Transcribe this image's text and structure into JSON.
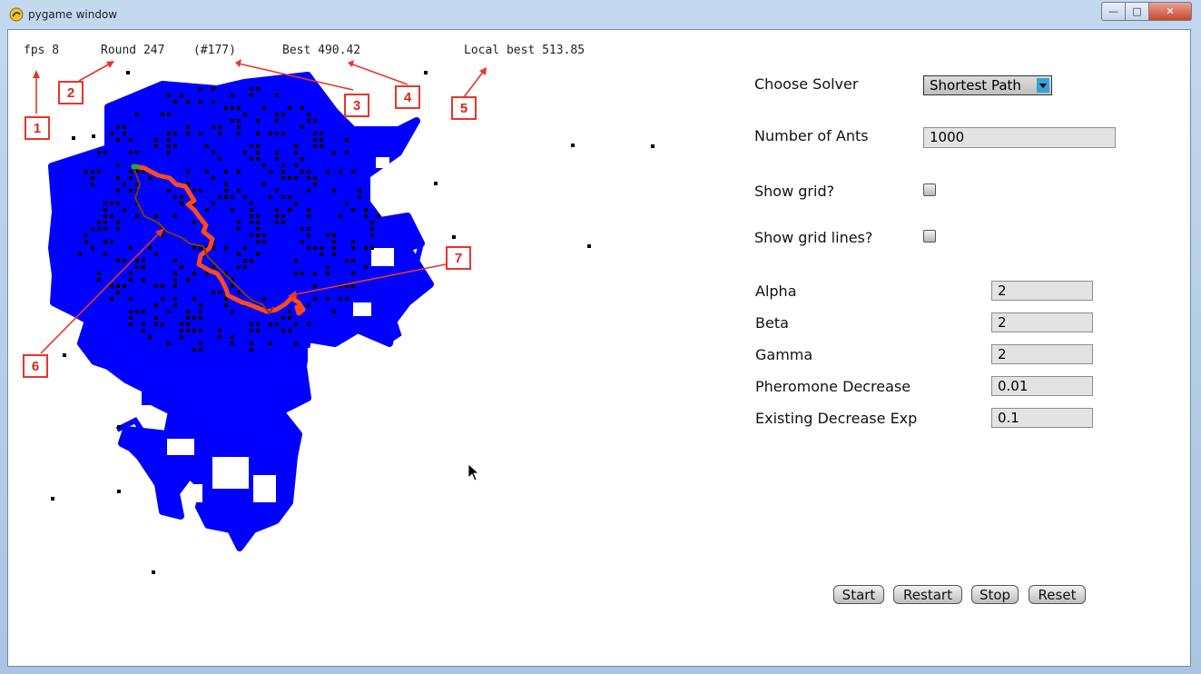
{
  "window": {
    "title": "pygame window",
    "icon": "pygame-snake-icon"
  },
  "stats": {
    "fps": "fps 8",
    "round": "Round 247",
    "round_index": "(#177)",
    "best": "Best 490.42",
    "local_best": "Local best 513.85"
  },
  "panel": {
    "solver_label": "Choose Solver",
    "solver_value": "Shortest Path",
    "ants_label": "Number of Ants",
    "ants_value": "1000",
    "show_grid_label": "Show grid?",
    "show_grid_lines_label": "Show grid lines?",
    "params": [
      {
        "label": "Alpha",
        "value": "2"
      },
      {
        "label": "Beta",
        "value": "2"
      },
      {
        "label": "Gamma",
        "value": "2"
      },
      {
        "label": "Pheromone Decrease",
        "value": "0.01"
      },
      {
        "label": "Existing Decrease Exp",
        "value": "0.1"
      }
    ]
  },
  "buttons": {
    "start": "Start",
    "restart": "Restart",
    "stop": "Stop",
    "reset": "Reset"
  },
  "annotations": [
    "1",
    "2",
    "3",
    "4",
    "5",
    "6",
    "7"
  ],
  "colors": {
    "trail": "#0000ff",
    "best_path": "#ff4a1a",
    "annotation": "#e8352a",
    "obstacle": "#000000"
  }
}
